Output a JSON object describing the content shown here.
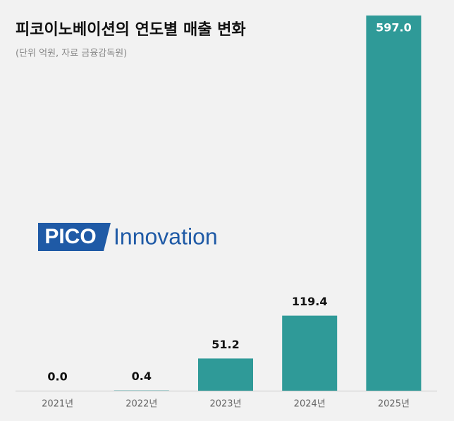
{
  "chart_data": {
    "type": "bar",
    "title": "피코이노베이션의 연도별 매출 변화",
    "subtitle": "(단위 억원, 자료 금융감독원)",
    "annotations": [
      "PICO",
      "Innovation"
    ],
    "categories": [
      "2021년",
      "2022년",
      "2023년",
      "2024년",
      "2025년"
    ],
    "values": [
      0,
      0.4,
      51.2,
      119.4,
      597
    ],
    "value_labels": [
      "0.0",
      "0.4",
      "51.2",
      "119.4",
      "597.0"
    ],
    "color": "#2f9a98",
    "ylim": [
      0,
      597
    ]
  }
}
